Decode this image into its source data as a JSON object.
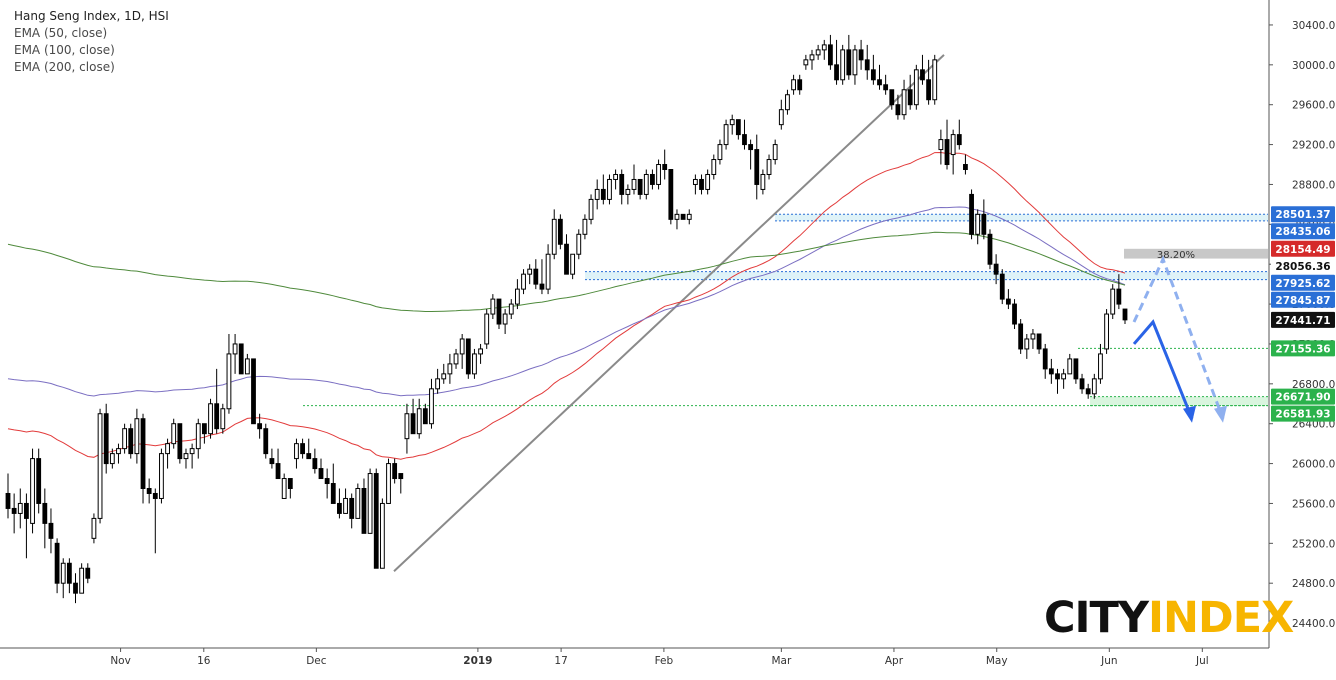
{
  "legend": {
    "title": "Hang Seng Index, 1D, HSI",
    "ema50": "EMA (50, close)",
    "ema100": "EMA (100, close)",
    "ema200": "EMA (200, close)"
  },
  "logo": {
    "part1": "CITY",
    "part2": "INDEX"
  },
  "colors": {
    "ema50": "#e23b3b",
    "ema100": "#7b6fc2",
    "ema200": "#4f8a3c",
    "blue_level": "#2a6fd6",
    "green_level": "#2bb24c",
    "arrow": "#2a63e6",
    "trendline": "#8a8a8a",
    "label_dark": "#111111",
    "label_red": "#d52a2a"
  },
  "chart_data": {
    "type": "candlestick",
    "title": "Hang Seng Index, 1D, HSI",
    "ylim": [
      24150,
      30550
    ],
    "y_ticks": [
      24400,
      24800,
      25200,
      25600,
      26000,
      26400,
      26800,
      27200,
      27600,
      28000,
      28400,
      28800,
      29200,
      29600,
      30000,
      30400
    ],
    "x_ticks": [
      "Nov",
      "16",
      "Dec",
      "2019",
      "17",
      "Feb",
      "Mar",
      "Apr",
      "May",
      "Jun",
      "Jul"
    ],
    "grid": false,
    "price_labels": [
      {
        "value": 28501.37,
        "text": "28501.37",
        "style": "blue"
      },
      {
        "value": 28435.06,
        "text": "28435.06",
        "style": "blue"
      },
      {
        "value": 28154.49,
        "text": "28154.49",
        "style": "red"
      },
      {
        "value": 28056.36,
        "text": "28056.36",
        "style": "plain"
      },
      {
        "value": 27925.62,
        "text": "27925.62",
        "style": "blue"
      },
      {
        "value": 27845.87,
        "text": "27845.87",
        "style": "blue"
      },
      {
        "value": 27441.71,
        "text": "27441.71",
        "style": "dark"
      },
      {
        "value": 27155.36,
        "text": "27155.36",
        "style": "green"
      },
      {
        "value": 26671.9,
        "text": "26671.90",
        "style": "green"
      },
      {
        "value": 26581.93,
        "text": "26581.93",
        "style": "green"
      }
    ],
    "fib_label": "38.20%",
    "candles": [
      [
        25700,
        25900,
        25450,
        25550
      ],
      [
        25550,
        25700,
        25300,
        25500
      ],
      [
        25500,
        25750,
        25350,
        25600
      ],
      [
        25600,
        25700,
        25050,
        25450
      ],
      [
        25400,
        26150,
        25300,
        26050
      ],
      [
        26050,
        26150,
        25500,
        25600
      ],
      [
        25600,
        25750,
        25150,
        25400
      ],
      [
        25400,
        25550,
        25100,
        25250
      ],
      [
        25200,
        25250,
        24700,
        24800
      ],
      [
        24800,
        25050,
        24650,
        25000
      ],
      [
        25000,
        25050,
        24700,
        24800
      ],
      [
        24800,
        24900,
        24600,
        24700
      ],
      [
        24700,
        25000,
        24700,
        24950
      ],
      [
        24950,
        25000,
        24800,
        24850
      ],
      [
        25250,
        25500,
        25200,
        25450
      ],
      [
        25450,
        26550,
        25400,
        26500
      ],
      [
        26500,
        26600,
        25900,
        26000
      ],
      [
        26000,
        26150,
        25950,
        26100
      ],
      [
        26100,
        26200,
        26000,
        26150
      ],
      [
        26150,
        26400,
        26100,
        26350
      ],
      [
        26350,
        26400,
        26050,
        26100
      ],
      [
        26100,
        26550,
        26000,
        26450
      ],
      [
        26450,
        26500,
        25600,
        25750
      ],
      [
        25750,
        25850,
        25600,
        25700
      ],
      [
        25700,
        25750,
        25100,
        25650
      ],
      [
        25650,
        26150,
        25600,
        26100
      ],
      [
        26100,
        26250,
        25950,
        26200
      ],
      [
        26200,
        26450,
        26150,
        26400
      ],
      [
        26400,
        26400,
        26000,
        26050
      ],
      [
        26050,
        26150,
        25950,
        26100
      ],
      [
        26100,
        26200,
        25950,
        26150
      ],
      [
        26150,
        26450,
        26050,
        26400
      ],
      [
        26400,
        26350,
        26200,
        26300
      ],
      [
        26300,
        26650,
        26250,
        26600
      ],
      [
        26600,
        26950,
        26300,
        26350
      ],
      [
        26350,
        26600,
        26300,
        26550
      ],
      [
        26550,
        27300,
        26500,
        27100
      ],
      [
        27100,
        27300,
        26900,
        27200
      ],
      [
        27200,
        27150,
        26950,
        26900
      ],
      [
        26900,
        27100,
        26900,
        27050
      ],
      [
        27050,
        27000,
        26450,
        26400
      ],
      [
        26400,
        26500,
        26250,
        26350
      ],
      [
        26350,
        26400,
        26050,
        26100
      ],
      [
        26050,
        26150,
        25950,
        26000
      ],
      [
        26000,
        26150,
        25850,
        25850
      ],
      [
        25650,
        25900,
        25650,
        25850
      ],
      [
        25850,
        25850,
        25650,
        25750
      ],
      [
        26050,
        26250,
        25950,
        26200
      ],
      [
        26200,
        26250,
        26050,
        26100
      ],
      [
        26100,
        26250,
        26050,
        26050
      ],
      [
        26050,
        26150,
        25900,
        25950
      ],
      [
        25950,
        26050,
        25850,
        25850
      ],
      [
        25850,
        25950,
        25650,
        25800
      ],
      [
        25800,
        26000,
        25600,
        25600
      ],
      [
        25600,
        25750,
        25450,
        25500
      ],
      [
        25500,
        25750,
        25500,
        25650
      ],
      [
        25650,
        25700,
        25350,
        25450
      ],
      [
        25450,
        25800,
        25450,
        25750
      ],
      [
        25750,
        25850,
        25300,
        25300
      ],
      [
        25300,
        25950,
        25300,
        25900
      ],
      [
        25900,
        25950,
        24950,
        24950
      ],
      [
        24950,
        25650,
        24950,
        25600
      ],
      [
        25600,
        26050,
        25600,
        26000
      ],
      [
        26000,
        26050,
        25800,
        25850
      ],
      [
        25900,
        25900,
        25700,
        25850
      ],
      [
        26250,
        26600,
        26100,
        26500
      ],
      [
        26500,
        26650,
        26300,
        26300
      ],
      [
        26300,
        26650,
        26250,
        26550
      ],
      [
        26550,
        26600,
        26400,
        26400
      ],
      [
        26400,
        26850,
        26350,
        26750
      ],
      [
        26750,
        26950,
        26700,
        26850
      ],
      [
        26850,
        27000,
        26800,
        26900
      ],
      [
        26900,
        27100,
        26800,
        27000
      ],
      [
        27000,
        27150,
        26950,
        27100
      ],
      [
        27100,
        27300,
        26950,
        27250
      ],
      [
        27250,
        27200,
        26850,
        26900
      ],
      [
        26900,
        27150,
        26850,
        27100
      ],
      [
        27100,
        27200,
        27000,
        27150
      ],
      [
        27200,
        27550,
        27150,
        27500
      ],
      [
        27500,
        27700,
        27450,
        27650
      ],
      [
        27650,
        27600,
        27350,
        27400
      ],
      [
        27400,
        27550,
        27300,
        27500
      ],
      [
        27500,
        27650,
        27450,
        27600
      ],
      [
        27600,
        27850,
        27550,
        27750
      ],
      [
        27750,
        27950,
        27700,
        27900
      ],
      [
        27900,
        28000,
        27800,
        27950
      ],
      [
        27950,
        28050,
        27750,
        27800
      ],
      [
        27800,
        28050,
        27700,
        27750
      ],
      [
        27750,
        28200,
        27700,
        28100
      ],
      [
        28100,
        28550,
        28050,
        28450
      ],
      [
        28450,
        28500,
        28150,
        28200
      ],
      [
        28200,
        28300,
        27900,
        27900
      ],
      [
        27900,
        28100,
        27850,
        28100
      ],
      [
        28100,
        28350,
        28050,
        28300
      ],
      [
        28300,
        28500,
        28250,
        28450
      ],
      [
        28450,
        28700,
        28400,
        28650
      ],
      [
        28650,
        28850,
        28550,
        28750
      ],
      [
        28750,
        28900,
        28600,
        28650
      ],
      [
        28650,
        28900,
        28600,
        28850
      ],
      [
        28850,
        28950,
        28750,
        28900
      ],
      [
        28900,
        28950,
        28600,
        28700
      ],
      [
        28700,
        28800,
        28600,
        28750
      ],
      [
        28750,
        29000,
        28700,
        28850
      ],
      [
        28850,
        28850,
        28650,
        28700
      ],
      [
        28700,
        28950,
        28650,
        28900
      ],
      [
        28900,
        28950,
        28750,
        28800
      ],
      [
        28800,
        29050,
        28750,
        29000
      ],
      [
        29000,
        29150,
        28850,
        28950
      ],
      [
        28950,
        28950,
        28400,
        28450
      ],
      [
        28450,
        28550,
        28350,
        28500
      ],
      [
        28500,
        28500,
        28450,
        28450
      ],
      [
        28450,
        28550,
        28400,
        28500
      ],
      [
        28800,
        28900,
        28700,
        28850
      ],
      [
        28850,
        28900,
        28700,
        28750
      ],
      [
        28750,
        28950,
        28700,
        28900
      ],
      [
        28900,
        29100,
        28850,
        29050
      ],
      [
        29050,
        29250,
        29000,
        29200
      ],
      [
        29200,
        29450,
        29150,
        29400
      ],
      [
        29400,
        29500,
        29300,
        29450
      ],
      [
        29450,
        29450,
        29250,
        29300
      ],
      [
        29300,
        29450,
        29150,
        29200
      ],
      [
        29200,
        29250,
        28950,
        29150
      ],
      [
        29150,
        29300,
        28650,
        28800
      ],
      [
        28750,
        28950,
        28700,
        28900
      ],
      [
        28900,
        29100,
        28850,
        29050
      ],
      [
        29050,
        29250,
        29000,
        29200
      ],
      [
        29400,
        29650,
        29350,
        29550
      ],
      [
        29550,
        29750,
        29500,
        29700
      ],
      [
        29750,
        29900,
        29700,
        29850
      ],
      [
        29850,
        29900,
        29700,
        29750
      ],
      [
        30000,
        30100,
        29950,
        30050
      ],
      [
        30050,
        30150,
        29950,
        30100
      ],
      [
        30100,
        30200,
        30050,
        30150
      ],
      [
        30150,
        30250,
        30050,
        30200
      ],
      [
        30200,
        30300,
        29950,
        30000
      ],
      [
        30000,
        30250,
        29800,
        29850
      ],
      [
        29850,
        30200,
        29800,
        30150
      ],
      [
        30150,
        30300,
        29850,
        29900
      ],
      [
        29900,
        30200,
        29800,
        30150
      ],
      [
        30150,
        30250,
        29950,
        30050
      ],
      [
        30050,
        30200,
        29850,
        29950
      ],
      [
        29950,
        30100,
        29800,
        29850
      ],
      [
        29850,
        30000,
        29750,
        29800
      ],
      [
        29800,
        29900,
        29700,
        29750
      ],
      [
        29750,
        29700,
        29550,
        29600
      ],
      [
        29600,
        29700,
        29450,
        29500
      ],
      [
        29500,
        29850,
        29450,
        29750
      ],
      [
        29750,
        29900,
        29550,
        29600
      ],
      [
        29600,
        30000,
        29550,
        29950
      ],
      [
        29950,
        30100,
        29800,
        29850
      ],
      [
        29850,
        30050,
        29600,
        29650
      ],
      [
        29650,
        30100,
        29600,
        30050
      ],
      [
        29150,
        29350,
        29000,
        29250
      ],
      [
        29250,
        29450,
        28950,
        29000
      ],
      [
        29100,
        29350,
        28900,
        29300
      ],
      [
        29300,
        29450,
        29150,
        29200
      ],
      [
        29000,
        29100,
        28900,
        28950
      ],
      [
        28700,
        28750,
        28250,
        28300
      ],
      [
        28300,
        28550,
        28200,
        28500
      ],
      [
        28500,
        28650,
        28250,
        28300
      ],
      [
        28300,
        28350,
        27950,
        28000
      ],
      [
        28000,
        28100,
        27800,
        27900
      ],
      [
        27900,
        27950,
        27600,
        27650
      ],
      [
        27650,
        27750,
        27550,
        27600
      ],
      [
        27600,
        27650,
        27350,
        27400
      ],
      [
        27400,
        27450,
        27100,
        27150
      ],
      [
        27150,
        27300,
        27050,
        27250
      ],
      [
        27250,
        27350,
        27150,
        27300
      ],
      [
        27300,
        27300,
        27100,
        27150
      ],
      [
        27150,
        27200,
        26850,
        26950
      ],
      [
        26950,
        27050,
        26800,
        26900
      ],
      [
        26900,
        26950,
        26700,
        26850
      ],
      [
        26850,
        26950,
        26750,
        26900
      ],
      [
        26900,
        27100,
        26900,
        27050
      ],
      [
        27050,
        27050,
        26800,
        26850
      ],
      [
        26850,
        26900,
        26700,
        26750
      ],
      [
        26750,
        26800,
        26650,
        26700
      ],
      [
        26700,
        26900,
        26650,
        26850
      ],
      [
        26850,
        27200,
        26800,
        27100
      ],
      [
        27150,
        27550,
        27100,
        27500
      ],
      [
        27500,
        27800,
        27450,
        27750
      ],
      [
        27750,
        27900,
        27550,
        27600
      ],
      [
        27550,
        27550,
        27400,
        27441.71
      ]
    ]
  }
}
